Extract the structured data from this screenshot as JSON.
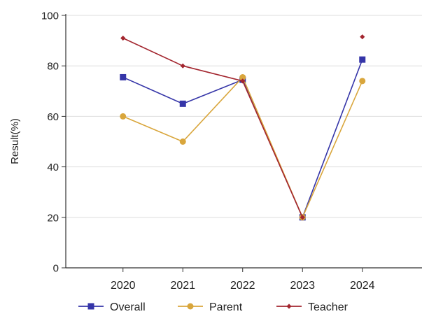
{
  "chart_data": {
    "type": "line",
    "title": "",
    "xlabel": "",
    "ylabel": "Result(%)",
    "categories": [
      "2020",
      "2021",
      "2022",
      "2023",
      "2024"
    ],
    "ylim": [
      0,
      100
    ],
    "yticks": [
      0,
      20,
      40,
      60,
      80,
      100
    ],
    "grid": true,
    "legend_position": "bottom",
    "series": [
      {
        "name": "Overall",
        "color": "#3535a8",
        "marker": "square",
        "values": [
          75.5,
          65,
          74.5,
          20,
          82.5
        ]
      },
      {
        "name": "Parent",
        "color": "#d9a63c",
        "marker": "circle",
        "values": [
          60,
          50,
          75.5,
          20,
          74
        ]
      },
      {
        "name": "Teacher",
        "color": "#a3262f",
        "marker": "diamond",
        "values": [
          91,
          80,
          74,
          20,
          91.5
        ],
        "connected_segments": [
          [
            0,
            3
          ]
        ]
      }
    ]
  }
}
